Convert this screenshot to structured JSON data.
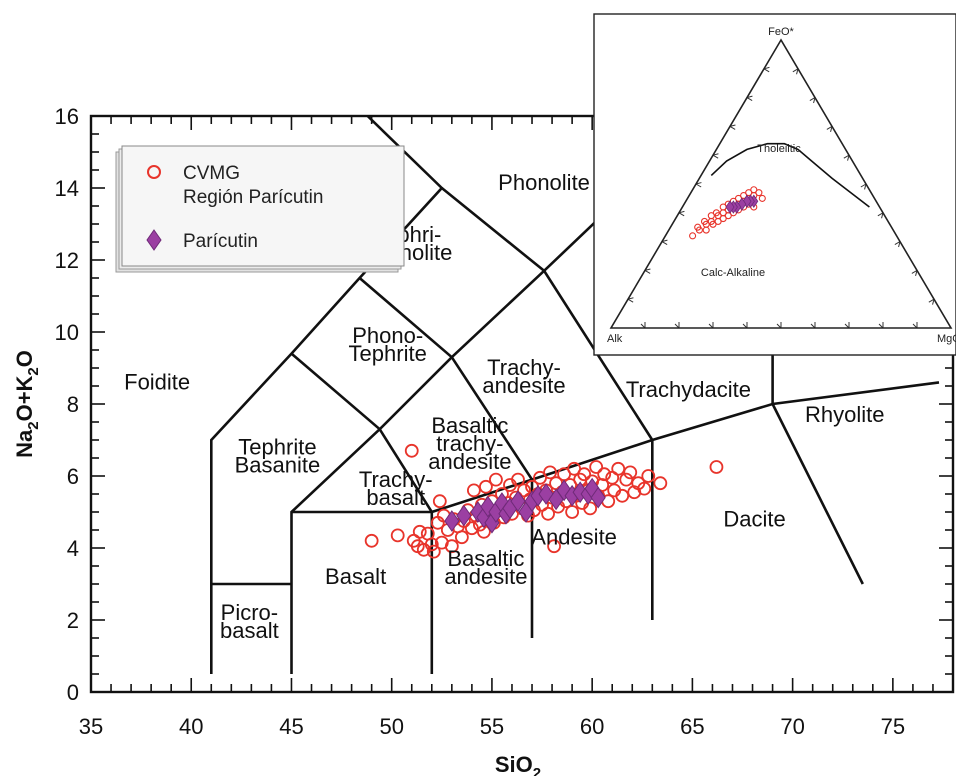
{
  "chart_data": [
    {
      "type": "scatter",
      "title": "",
      "xlabel": "SiO",
      "xlabel_sub": "2",
      "ylabel_parts": [
        "Na",
        "2",
        "O+K",
        "2",
        "O"
      ],
      "xlim": [
        35,
        78
      ],
      "ylim": [
        0,
        16
      ],
      "xticks": [
        35,
        40,
        45,
        50,
        55,
        60,
        65,
        70,
        75
      ],
      "yticks": [
        0,
        2,
        4,
        6,
        8,
        10,
        12,
        14,
        16
      ],
      "grid": false,
      "legend_position": "top-left",
      "colors": {
        "cvmg": "#e8342b",
        "paricutin": "#9b3fa2",
        "paricutin_stroke": "#6f2a78",
        "line": "#111111"
      },
      "legend": [
        {
          "lines": [
            "CVMG",
            "Región Parícutin"
          ],
          "marker": "open-circle"
        },
        {
          "lines": [
            "Parícutin"
          ],
          "marker": "diamond"
        }
      ],
      "field_boundaries": [
        [
          [
            41,
            0.5
          ],
          [
            41,
            3
          ],
          [
            41,
            7
          ],
          [
            45,
            9.4
          ],
          [
            48.4,
            11.5
          ],
          [
            52.5,
            14
          ],
          [
            48.8,
            16
          ]
        ],
        [
          [
            45,
            0.5
          ],
          [
            45,
            3
          ],
          [
            45,
            5
          ],
          [
            49.4,
            7.3
          ],
          [
            53,
            9.3
          ],
          [
            57.6,
            11.7
          ],
          [
            61,
            13.5
          ],
          [
            63.4,
            16
          ]
        ],
        [
          [
            52,
            0.5
          ],
          [
            52,
            5
          ],
          [
            57,
            5.9
          ],
          [
            63,
            7
          ],
          [
            69,
            8
          ],
          [
            77.3,
            8.6
          ]
        ],
        [
          [
            57,
            1.5
          ],
          [
            57,
            5.9
          ]
        ],
        [
          [
            63,
            2
          ],
          [
            63,
            7
          ]
        ],
        [
          [
            41,
            3
          ],
          [
            45,
            3
          ]
        ],
        [
          [
            45,
            5
          ],
          [
            52,
            5
          ]
        ],
        [
          [
            52,
            5
          ],
          [
            49.4,
            7.3
          ],
          [
            45,
            9.4
          ]
        ],
        [
          [
            57,
            5.9
          ],
          [
            53,
            9.3
          ],
          [
            48.4,
            11.5
          ]
        ],
        [
          [
            63,
            7
          ],
          [
            57.6,
            11.7
          ],
          [
            52.5,
            14
          ]
        ],
        [
          [
            69,
            8
          ],
          [
            69,
            13
          ]
        ],
        [
          [
            69,
            8
          ],
          [
            73.5,
            3
          ]
        ]
      ],
      "field_labels": [
        {
          "lines": [
            "Foidite"
          ],
          "x": 38.3,
          "y": 8.4
        },
        {
          "lines": [
            "Phonolite"
          ],
          "x": 57.6,
          "y": 13.95
        },
        {
          "lines": [
            "Tephri-",
            "phonolite"
          ],
          "x": 50.8,
          "y": 12.5
        },
        {
          "lines": [
            "Phono-",
            "Tephrite"
          ],
          "x": 49.8,
          "y": 9.7
        },
        {
          "lines": [
            "Tephrite",
            "Basanite"
          ],
          "x": 44.3,
          "y": 6.6
        },
        {
          "lines": [
            "Trachy-",
            "basalt"
          ],
          "x": 50.2,
          "y": 5.7
        },
        {
          "lines": [
            "Basaltic",
            "trachy-",
            "andesite"
          ],
          "x": 53.9,
          "y": 7.2
        },
        {
          "lines": [
            "Trachy-",
            "andesite"
          ],
          "x": 56.6,
          "y": 8.8
        },
        {
          "lines": [
            "Trachydacite"
          ],
          "x": 64.8,
          "y": 8.2
        },
        {
          "lines": [
            "Rhyolite"
          ],
          "x": 72.6,
          "y": 7.5
        },
        {
          "lines": [
            "Basalt"
          ],
          "x": 48.2,
          "y": 3.0
        },
        {
          "lines": [
            "Basaltic",
            "andesite"
          ],
          "x": 54.7,
          "y": 3.5
        },
        {
          "lines": [
            "Andesite"
          ],
          "x": 59.1,
          "y": 4.1
        },
        {
          "lines": [
            "Dacite"
          ],
          "x": 68.1,
          "y": 4.6
        },
        {
          "lines": [
            "Picro-",
            "basalt"
          ],
          "x": 42.9,
          "y": 2.0
        }
      ],
      "cvmg_points": [
        [
          49,
          4.2
        ],
        [
          50.3,
          4.35
        ],
        [
          51,
          6.7
        ],
        [
          51.1,
          4.2
        ],
        [
          51.3,
          4.05
        ],
        [
          51.4,
          4.45
        ],
        [
          51.6,
          3.95
        ],
        [
          51.8,
          4.4
        ],
        [
          52,
          4.1
        ],
        [
          52.1,
          3.9
        ],
        [
          52.3,
          4.7
        ],
        [
          52.4,
          5.3
        ],
        [
          52.5,
          4.15
        ],
        [
          52.6,
          4.9
        ],
        [
          52.8,
          4.5
        ],
        [
          53,
          4.05
        ],
        [
          53.1,
          4.8
        ],
        [
          53.3,
          4.6
        ],
        [
          53.5,
          4.3
        ],
        [
          53.6,
          4.75
        ],
        [
          53.8,
          5.05
        ],
        [
          54,
          4.55
        ],
        [
          54.1,
          5.6
        ],
        [
          54.2,
          4.9
        ],
        [
          54.4,
          4.65
        ],
        [
          54.5,
          5.2
        ],
        [
          54.6,
          4.45
        ],
        [
          54.7,
          5.7
        ],
        [
          54.9,
          4.9
        ],
        [
          55,
          5.3
        ],
        [
          55.1,
          4.7
        ],
        [
          55.2,
          5.9
        ],
        [
          55.4,
          5.05
        ],
        [
          55.5,
          5.5
        ],
        [
          55.6,
          4.85
        ],
        [
          55.8,
          5.25
        ],
        [
          55.9,
          5.75
        ],
        [
          56,
          4.95
        ],
        [
          56.2,
          5.4
        ],
        [
          56.3,
          5.9
        ],
        [
          56.5,
          5.1
        ],
        [
          56.6,
          5.6
        ],
        [
          56.8,
          4.9
        ],
        [
          56.9,
          5.35
        ],
        [
          57,
          5.7
        ],
        [
          57.1,
          5.05
        ],
        [
          57.3,
          5.5
        ],
        [
          57.4,
          5.95
        ],
        [
          57.5,
          5.2
        ],
        [
          57.7,
          5.6
        ],
        [
          57.8,
          4.95
        ],
        [
          57.9,
          6.1
        ],
        [
          58,
          5.4
        ],
        [
          58.1,
          4.05
        ],
        [
          58.2,
          5.8
        ],
        [
          58.3,
          5.15
        ],
        [
          58.5,
          5.55
        ],
        [
          58.6,
          6.05
        ],
        [
          58.7,
          5.3
        ],
        [
          58.9,
          5.75
        ],
        [
          59,
          5.0
        ],
        [
          59.1,
          6.2
        ],
        [
          59.2,
          5.45
        ],
        [
          59.4,
          5.9
        ],
        [
          59.5,
          5.25
        ],
        [
          59.6,
          6.05
        ],
        [
          59.8,
          5.6
        ],
        [
          59.9,
          5.1
        ],
        [
          60,
          5.85
        ],
        [
          60.2,
          6.25
        ],
        [
          60.3,
          5.45
        ],
        [
          60.5,
          5.75
        ],
        [
          60.6,
          6.05
        ],
        [
          60.8,
          5.3
        ],
        [
          61,
          5.95
        ],
        [
          61.1,
          5.6
        ],
        [
          61.3,
          6.2
        ],
        [
          61.5,
          5.45
        ],
        [
          61.7,
          5.9
        ],
        [
          61.9,
          6.1
        ],
        [
          62.1,
          5.55
        ],
        [
          62.3,
          5.8
        ],
        [
          62.6,
          5.65
        ],
        [
          62.8,
          6.0
        ],
        [
          63.4,
          5.8
        ],
        [
          66.2,
          6.25
        ]
      ],
      "paricutin_points": [
        [
          53,
          4.75
        ],
        [
          53.6,
          4.9
        ],
        [
          54.3,
          5.0
        ],
        [
          54.6,
          4.85
        ],
        [
          54.8,
          5.15
        ],
        [
          55,
          4.7
        ],
        [
          55.2,
          5.0
        ],
        [
          55.5,
          5.25
        ],
        [
          55.7,
          4.95
        ],
        [
          55.9,
          5.1
        ],
        [
          56.3,
          5.3
        ],
        [
          56.7,
          5.0
        ],
        [
          57,
          5.3
        ],
        [
          57.3,
          5.45
        ],
        [
          57.7,
          5.5
        ],
        [
          58.2,
          5.35
        ],
        [
          58.6,
          5.6
        ],
        [
          59,
          5.45
        ],
        [
          59.4,
          5.55
        ],
        [
          59.8,
          5.5
        ],
        [
          60,
          5.65
        ],
        [
          60.3,
          5.4
        ]
      ]
    },
    {
      "type": "scatter",
      "subtype": "ternary",
      "apex_labels": {
        "top": "FeO*",
        "left": "Alk",
        "right": "MgO"
      },
      "region_labels": [
        "Tholeiitic",
        "Calc-Alkaline"
      ],
      "boundary_curve_ternary": [
        [
          0.55,
          0.42
        ],
        [
          0.47,
          0.47
        ],
        [
          0.39,
          0.52
        ],
        [
          0.3,
          0.58
        ],
        [
          0.24,
          0.62
        ],
        [
          0.19,
          0.64
        ],
        [
          0.14,
          0.64
        ],
        [
          0.09,
          0.62
        ],
        [
          0.05,
          0.58
        ],
        [
          0.03,
          0.53
        ]
      ],
      "cvmg_points_ternary": [
        [
          0.22,
          0.45
        ],
        [
          0.21,
          0.42
        ],
        [
          0.2,
          0.47
        ],
        [
          0.2,
          0.44
        ],
        [
          0.19,
          0.46
        ],
        [
          0.19,
          0.43
        ],
        [
          0.18,
          0.48
        ],
        [
          0.18,
          0.45
        ],
        [
          0.18,
          0.42
        ],
        [
          0.17,
          0.47
        ],
        [
          0.17,
          0.44
        ],
        [
          0.17,
          0.41
        ],
        [
          0.16,
          0.46
        ],
        [
          0.16,
          0.43
        ],
        [
          0.16,
          0.4
        ],
        [
          0.15,
          0.45
        ],
        [
          0.15,
          0.42
        ],
        [
          0.15,
          0.39
        ],
        [
          0.14,
          0.44
        ],
        [
          0.14,
          0.41
        ],
        [
          0.14,
          0.38
        ],
        [
          0.13,
          0.43
        ],
        [
          0.13,
          0.4
        ],
        [
          0.13,
          0.37
        ],
        [
          0.12,
          0.42
        ],
        [
          0.12,
          0.39
        ],
        [
          0.12,
          0.36
        ],
        [
          0.11,
          0.4
        ],
        [
          0.11,
          0.37
        ],
        [
          0.11,
          0.34
        ],
        [
          0.1,
          0.39
        ],
        [
          0.1,
          0.36
        ],
        [
          0.09,
          0.37
        ],
        [
          0.09,
          0.34
        ],
        [
          0.08,
          0.35
        ],
        [
          0.08,
          0.32
        ]
      ],
      "paricutin_points_ternary": [
        [
          0.2,
          0.44
        ],
        [
          0.19,
          0.44
        ],
        [
          0.18,
          0.44
        ],
        [
          0.17,
          0.43
        ],
        [
          0.16,
          0.42
        ],
        [
          0.15,
          0.42
        ],
        [
          0.14,
          0.42
        ]
      ]
    }
  ]
}
